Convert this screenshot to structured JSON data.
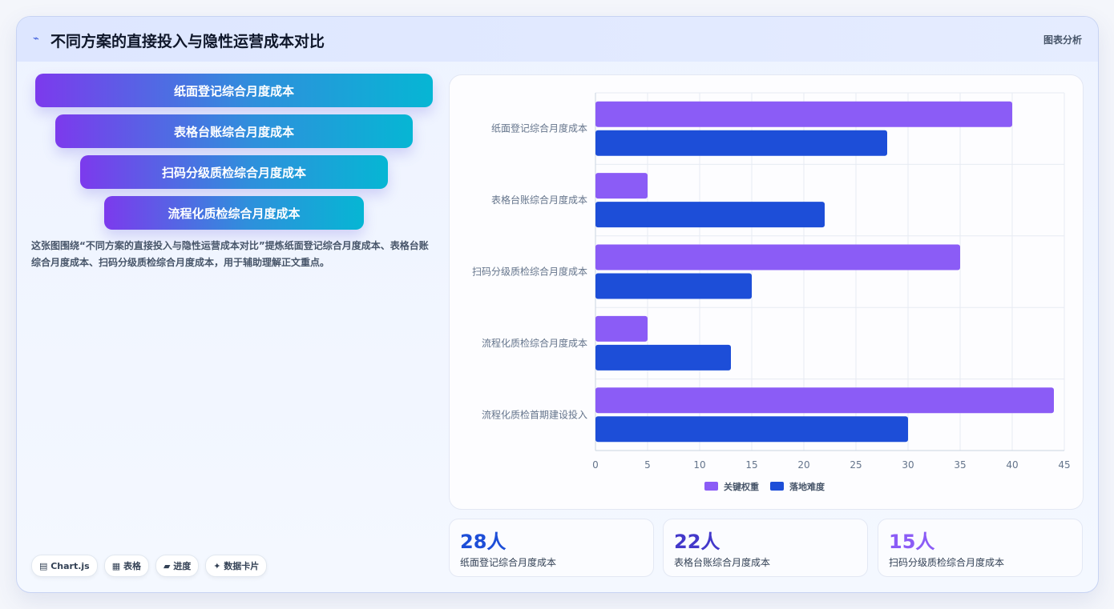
{
  "header": {
    "icon": "line-chart-icon",
    "title": "不同方案的直接投入与隐性运营成本对比",
    "tag": "图表分析"
  },
  "funnel": [
    "纸面登记综合月度成本",
    "表格台账综合月度成本",
    "扫码分级质检综合月度成本",
    "流程化质检综合月度成本"
  ],
  "description": "这张图围绕“不同方案的直接投入与隐性运营成本对比”提炼纸面登记综合月度成本、表格台账综合月度成本、扫码分级质检综合月度成本，用于辅助理解正文重点。",
  "chips": [
    "▤ Chart.js",
    "▦ 表格",
    "▰ 进度",
    "✦ 数据卡片"
  ],
  "chart_data": {
    "type": "bar",
    "orientation": "horizontal",
    "categories": [
      "纸面登记综合月度成本",
      "表格台账综合月度成本",
      "扫码分级质检综合月度成本",
      "流程化质检综合月度成本",
      "流程化质检首期建设投入"
    ],
    "series": [
      {
        "name": "关键权重",
        "values": [
          40,
          5,
          35,
          5,
          44
        ],
        "color": "#8b5cf6"
      },
      {
        "name": "落地难度",
        "values": [
          28,
          22,
          15,
          13,
          30
        ],
        "color": "#1d4ed8"
      }
    ],
    "xlim": [
      0,
      45
    ],
    "xticks": [
      0,
      5,
      10,
      15,
      20,
      25,
      30,
      35,
      40,
      45
    ],
    "grid": true,
    "legend_position": "bottom"
  },
  "kpis": [
    {
      "value": "28人",
      "label": "纸面登记综合月度成本",
      "color": "#1d4ed8"
    },
    {
      "value": "22人",
      "label": "表格台账综合月度成本",
      "color": "#4338ca"
    },
    {
      "value": "15人",
      "label": "扫码分级质检综合月度成本",
      "color": "#8b5cf6"
    }
  ]
}
